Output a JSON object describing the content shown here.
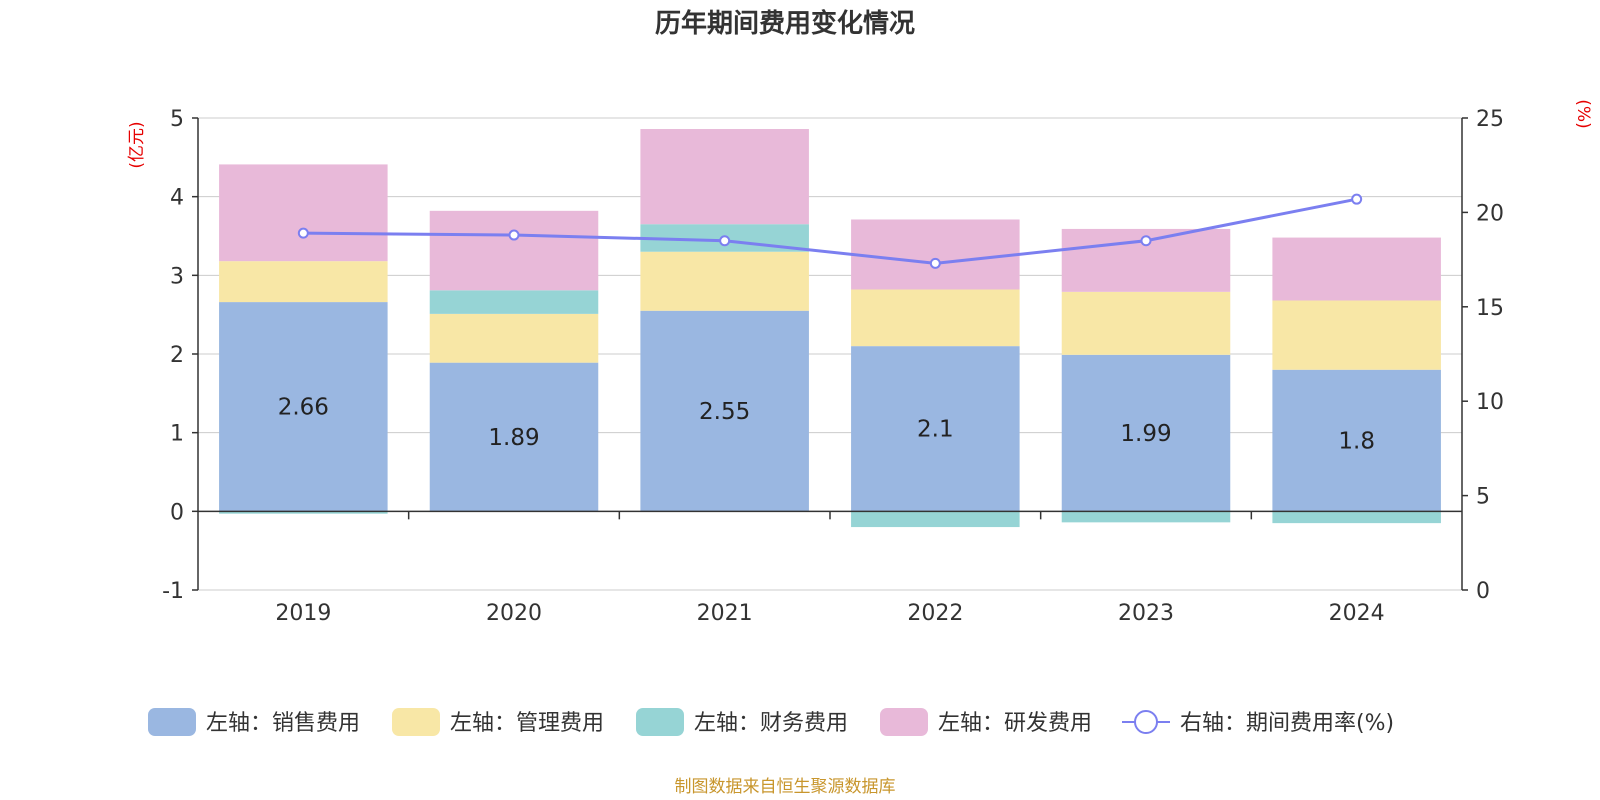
{
  "chart_data": {
    "type": "bar",
    "title": "历年期间费用变化情况",
    "categories": [
      "2019",
      "2020",
      "2021",
      "2022",
      "2023",
      "2024"
    ],
    "left_axis": {
      "unit": "(亿元)",
      "ylim": [
        -1,
        5
      ],
      "ticks": [
        -1,
        0,
        1,
        2,
        3,
        4,
        5
      ]
    },
    "right_axis": {
      "unit": "(%)",
      "ylim": [
        0,
        25
      ],
      "ticks": [
        0,
        5,
        10,
        15,
        20,
        25
      ]
    },
    "series": [
      {
        "name": "左轴：销售费用",
        "axis": "left",
        "type": "bar",
        "color": "#9ab7e1",
        "values": [
          2.66,
          1.89,
          2.55,
          2.1,
          1.99,
          1.8
        ],
        "labels": [
          "2.66",
          "1.89",
          "2.55",
          "2.1",
          "1.99",
          "1.8"
        ]
      },
      {
        "name": "左轴：管理费用",
        "axis": "left",
        "type": "bar",
        "color": "#f8e7a6",
        "values": [
          0.52,
          0.62,
          0.75,
          0.72,
          0.8,
          0.88
        ]
      },
      {
        "name": "左轴：财务费用",
        "axis": "left",
        "type": "bar",
        "color": "#96d4d5",
        "values": [
          -0.03,
          0.3,
          0.35,
          -0.2,
          -0.14,
          -0.15
        ]
      },
      {
        "name": "左轴：研发费用",
        "axis": "left",
        "type": "bar",
        "color": "#e8b9d9",
        "values": [
          1.23,
          1.01,
          1.21,
          0.89,
          0.8,
          0.8
        ]
      },
      {
        "name": "右轴：期间费用率(%)",
        "axis": "right",
        "type": "line",
        "color": "#7b7ff0",
        "values": [
          18.9,
          18.8,
          18.5,
          17.3,
          18.5,
          20.7
        ]
      }
    ],
    "grid": true,
    "legend_position": "bottom"
  },
  "source_note": "制图数据来自恒生聚源数据库"
}
